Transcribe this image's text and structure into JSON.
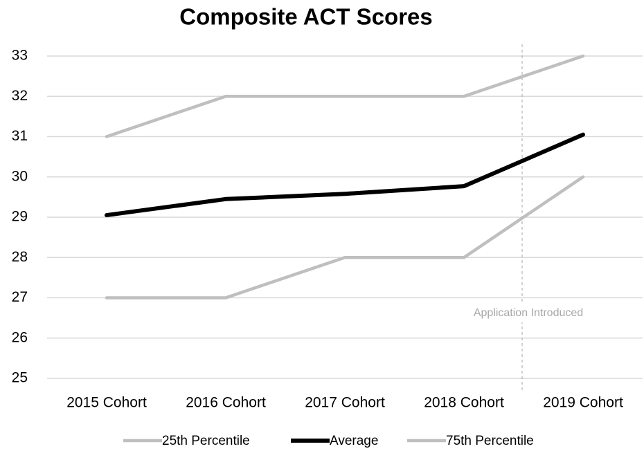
{
  "chart_data": {
    "type": "line",
    "title": "Composite ACT Scores",
    "categories": [
      "2015 Cohort",
      "2016 Cohort",
      "2017 Cohort",
      "2018 Cohort",
      "2019 Cohort"
    ],
    "series": [
      {
        "name": "25th Percentile",
        "color": "#bfbfbf",
        "values": [
          27,
          27,
          28,
          28,
          30
        ]
      },
      {
        "name": "Average",
        "color": "#000000",
        "values": [
          29.05,
          29.45,
          29.58,
          29.77,
          31.05
        ]
      },
      {
        "name": "75th Percentile",
        "color": "#bfbfbf",
        "values": [
          31,
          32,
          32,
          32,
          33
        ]
      }
    ],
    "ylim": [
      25,
      33
    ],
    "yticks": [
      25,
      26,
      27,
      28,
      29,
      30,
      31,
      32,
      33
    ],
    "grid": true,
    "legend": "bottom",
    "annotations": [
      {
        "text": "Application Introduced"
      }
    ]
  }
}
